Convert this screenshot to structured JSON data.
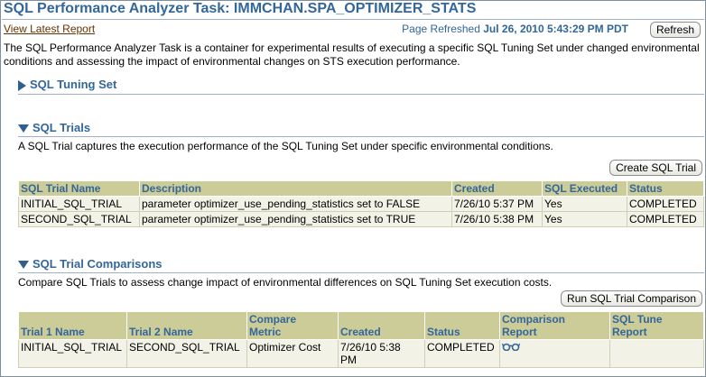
{
  "header": {
    "title": "SQL Performance Analyzer Task: IMMCHAN.SPA_OPTIMIZER_STATS",
    "view_report_link": "View Latest Report",
    "page_refreshed_label": "Page Refreshed",
    "page_refreshed_value": "Jul 26, 2010 5:43:29 PM PDT",
    "refresh_button": "Refresh"
  },
  "intro": "The SQL Performance Analyzer Task is a container for experimental results of executing a specific SQL Tuning Set under changed environmental conditions and assessing the impact of environmental changes on STS execution performance.",
  "tuning_set": {
    "heading": "SQL Tuning Set",
    "expanded": false
  },
  "trials": {
    "heading": "SQL Trials",
    "description": "A SQL Trial captures the execution performance of the SQL Tuning Set under specific environmental conditions.",
    "create_button": "Create SQL Trial",
    "columns": [
      "SQL Trial Name",
      "Description",
      "Created",
      "SQL Executed",
      "Status"
    ],
    "rows": [
      [
        "INITIAL_SQL_TRIAL",
        "parameter optimizer_use_pending_statistics set to FALSE",
        "7/26/10 5:37 PM",
        "Yes",
        "COMPLETED"
      ],
      [
        "SECOND_SQL_TRIAL",
        "parameter optimizer_use_pending_statistics set to TRUE",
        "7/26/10 5:38 PM",
        "Yes",
        "COMPLETED"
      ]
    ]
  },
  "comparisons": {
    "heading": "SQL Trial Comparisons",
    "description": "Compare SQL Trials to assess change impact of environmental differences on SQL Tuning Set execution costs.",
    "run_button": "Run SQL Trial Comparison",
    "columns": {
      "trial1": "Trial 1 Name",
      "trial2": "Trial 2 Name",
      "metric_line1": "Compare",
      "metric_line2": "Metric",
      "created": "Created",
      "status": "Status",
      "report_line1": "Comparison",
      "report_line2": "Report",
      "tune_line1": "SQL Tune",
      "tune_line2": "Report"
    },
    "row": {
      "trial1": "INITIAL_SQL_TRIAL",
      "trial2": "SECOND_SQL_TRIAL",
      "metric": "Optimizer Cost",
      "created_line1": "7/26/10 5:38",
      "created_line2": "PM",
      "status": "COMPLETED",
      "report_icon": "glasses-icon",
      "tune_report": ""
    }
  },
  "colors": {
    "heading": "#336699",
    "table_header_bg": "#cccc99",
    "link": "#663300"
  }
}
